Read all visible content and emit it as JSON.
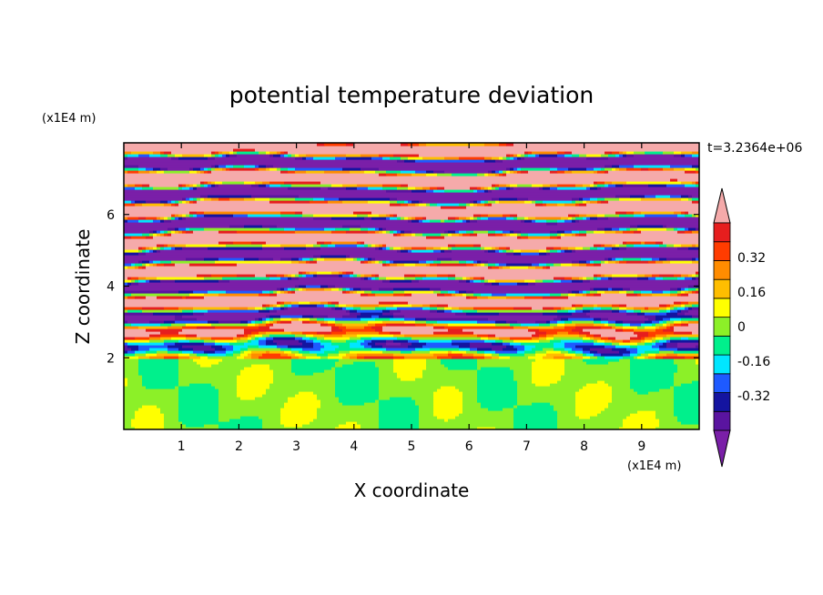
{
  "chart_data": {
    "type": "heatmap",
    "title": "potential temperature deviation",
    "xlabel": "X coordinate",
    "ylabel": "Z coordinate",
    "x_unit": "(x1E4 m)",
    "y_unit": "(x1E4 m)",
    "time_label": "t=3.2364e+06",
    "xlim": [
      0,
      10
    ],
    "ylim": [
      0,
      8
    ],
    "x_ticks": [
      "1",
      "2",
      "3",
      "4",
      "5",
      "6",
      "7",
      "8",
      "9"
    ],
    "y_ticks": [
      "2",
      "4",
      "6"
    ],
    "colorbar": {
      "levels": [
        -0.48,
        -0.4,
        -0.32,
        -0.24,
        -0.16,
        -0.08,
        0,
        0.08,
        0.16,
        0.24,
        0.32,
        0.4,
        0.48
      ],
      "labels": [
        "0.32",
        "0.16",
        "0",
        "-0.16",
        "-0.32"
      ],
      "label_values": [
        0.32,
        0.16,
        0,
        -0.16,
        -0.32
      ],
      "extend": "both",
      "colors": [
        "#7a1fa8",
        "#5a14a0",
        "#1414a0",
        "#1e5aff",
        "#00e6ff",
        "#00f08c",
        "#8cf028",
        "#ffff00",
        "#ffbe00",
        "#ff8c00",
        "#ff3c00",
        "#e61e1e",
        "#f5aaaa"
      ]
    },
    "background_color": "#ffffff"
  }
}
